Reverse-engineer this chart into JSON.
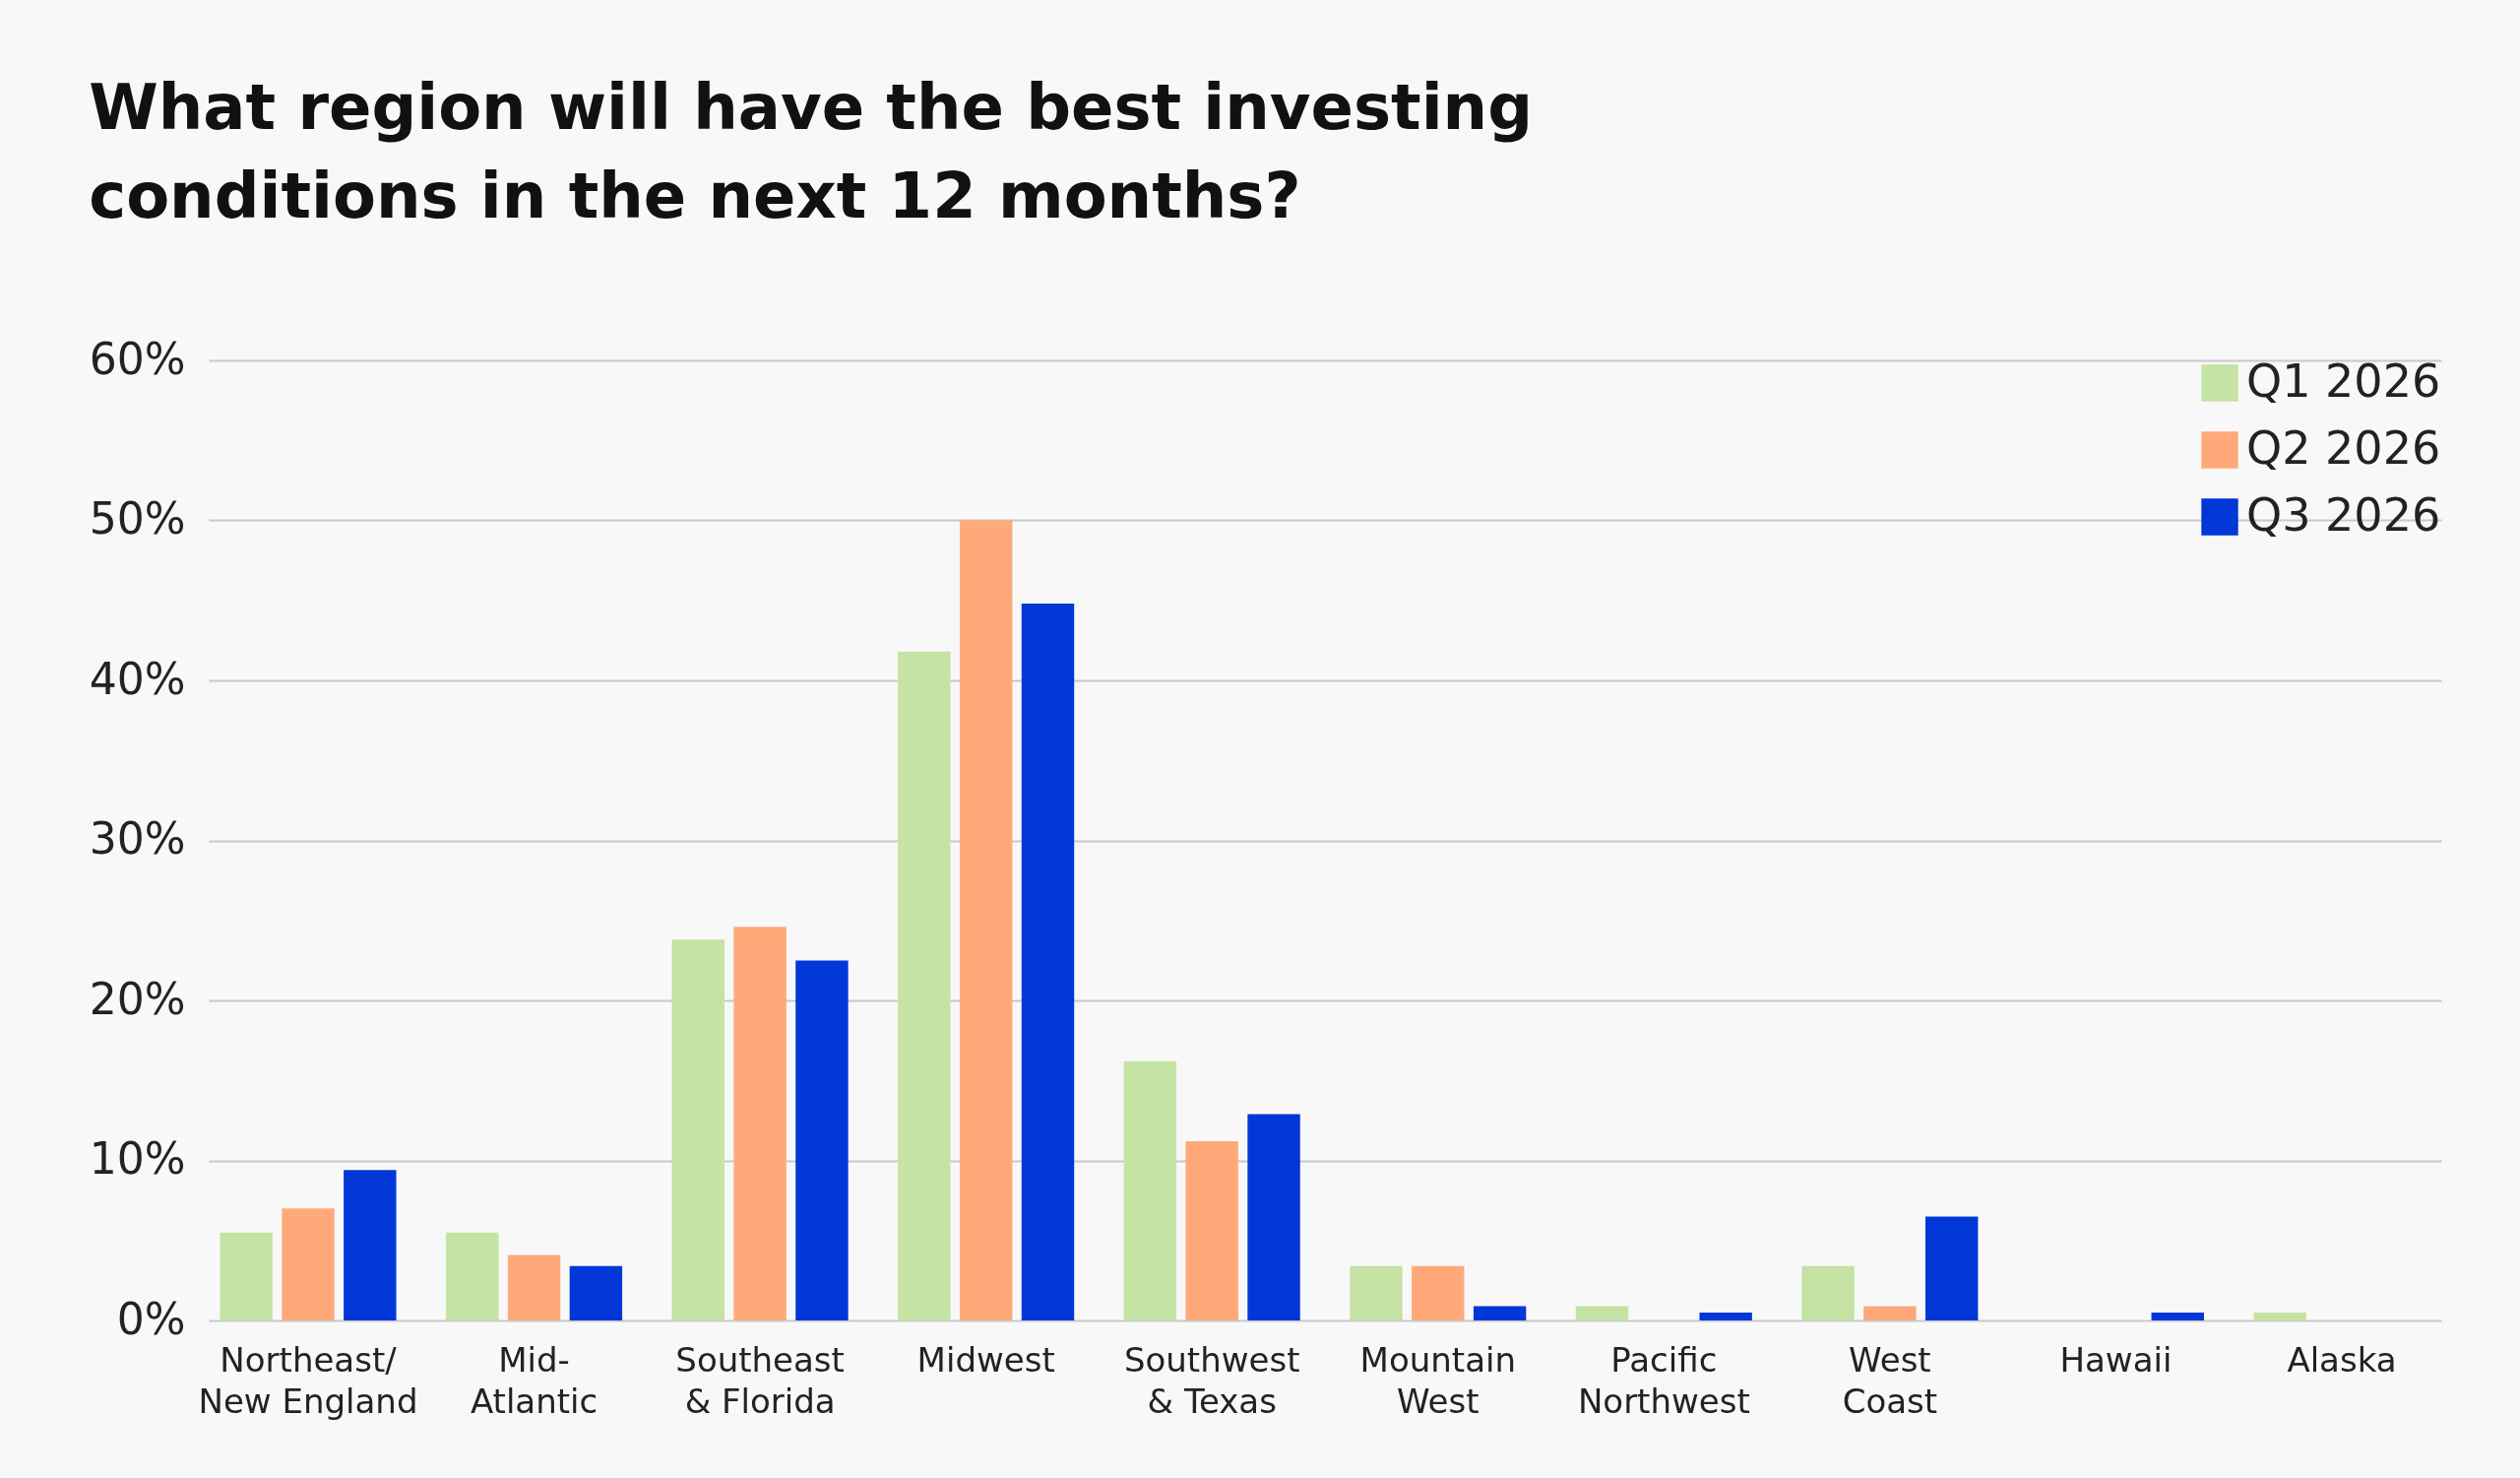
{
  "chart_data": {
    "type": "bar",
    "title": "What region will have the best investing\nconditions in the next 12 months?",
    "categories": [
      "Northeast/\nNew England",
      "Mid-\nAtlantic",
      "Southeast\n& Florida",
      "Midwest",
      "Southwest\n& Texas",
      "Mountain\nWest",
      "Pacific\nNorthwest",
      "West\nCoast",
      "Hawaii",
      "Alaska"
    ],
    "series": [
      {
        "name": "Q1 2026",
        "color": "#c4e3a4",
        "values": [
          5.5,
          5.5,
          23.8,
          41.8,
          16.2,
          3.4,
          0.9,
          3.4,
          0,
          0.5
        ]
      },
      {
        "name": "Q2 2026",
        "color": "#ffa97a",
        "values": [
          7,
          4.1,
          24.6,
          50,
          11.2,
          3.4,
          0,
          0.9,
          0,
          0
        ]
      },
      {
        "name": "Q3 2026",
        "color": "#0037d6",
        "values": [
          9.4,
          3.4,
          22.5,
          44.8,
          12.9,
          0.9,
          0.5,
          6.5,
          0.5,
          0
        ]
      }
    ],
    "ylim": [
      0,
      60
    ],
    "yticks": [
      {
        "value": 0,
        "label": "0%"
      },
      {
        "value": 10,
        "label": "10%"
      },
      {
        "value": 20,
        "label": "20%"
      },
      {
        "value": 30,
        "label": "30%"
      },
      {
        "value": 40,
        "label": "40%"
      },
      {
        "value": 50,
        "label": "50%"
      },
      {
        "value": 60,
        "label": "60%"
      }
    ],
    "grid": "y",
    "legend": "top right"
  }
}
